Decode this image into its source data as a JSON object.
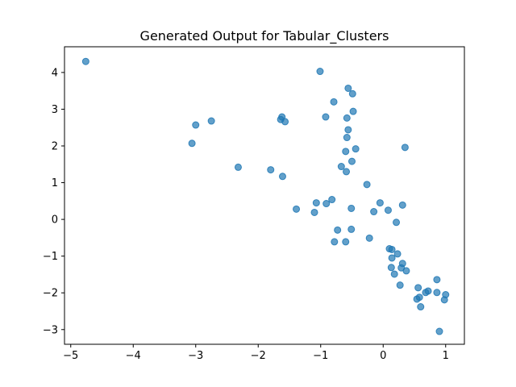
{
  "chart_data": {
    "type": "scatter",
    "title": "Generated Output for Tabular_Clusters",
    "xlabel": "",
    "ylabel": "",
    "xlim": [
      -5.1,
      1.3
    ],
    "ylim": [
      -3.4,
      4.7
    ],
    "xticks": [
      -5,
      -4,
      -3,
      -2,
      -1,
      0,
      1
    ],
    "yticks": [
      -3,
      -2,
      -1,
      0,
      1,
      2,
      3,
      4
    ],
    "xtick_labels": [
      "−5",
      "−4",
      "−3",
      "−2",
      "−1",
      "0",
      "1"
    ],
    "ytick_labels": [
      "−3",
      "−2",
      "−1",
      "0",
      "1",
      "2",
      "3",
      "4"
    ],
    "grid": false,
    "color": "#1f77b4",
    "points": [
      [
        -4.76,
        4.3
      ],
      [
        -1.01,
        4.03
      ],
      [
        -0.56,
        3.57
      ],
      [
        -0.49,
        3.42
      ],
      [
        -0.79,
        3.2
      ],
      [
        -0.48,
        2.94
      ],
      [
        -0.92,
        2.79
      ],
      [
        -0.58,
        2.76
      ],
      [
        -1.62,
        2.79
      ],
      [
        -1.64,
        2.72
      ],
      [
        -1.57,
        2.66
      ],
      [
        -2.75,
        2.68
      ],
      [
        -3.0,
        2.57
      ],
      [
        -0.56,
        2.44
      ],
      [
        -0.58,
        2.23
      ],
      [
        -3.06,
        2.07
      ],
      [
        0.35,
        1.96
      ],
      [
        -0.44,
        1.92
      ],
      [
        -0.6,
        1.85
      ],
      [
        -0.5,
        1.58
      ],
      [
        -0.67,
        1.44
      ],
      [
        -2.32,
        1.42
      ],
      [
        -1.8,
        1.35
      ],
      [
        -0.59,
        1.3
      ],
      [
        -1.61,
        1.17
      ],
      [
        -0.26,
        0.95
      ],
      [
        -0.82,
        0.54
      ],
      [
        -1.07,
        0.45
      ],
      [
        -0.91,
        0.43
      ],
      [
        -0.05,
        0.45
      ],
      [
        0.31,
        0.39
      ],
      [
        -1.39,
        0.28
      ],
      [
        -0.51,
        0.3
      ],
      [
        0.08,
        0.25
      ],
      [
        -0.15,
        0.21
      ],
      [
        -1.1,
        0.19
      ],
      [
        0.21,
        -0.08
      ],
      [
        -0.73,
        -0.29
      ],
      [
        -0.51,
        -0.27
      ],
      [
        -0.22,
        -0.51
      ],
      [
        -0.78,
        -0.61
      ],
      [
        -0.6,
        -0.61
      ],
      [
        0.1,
        -0.8
      ],
      [
        0.14,
        -0.82
      ],
      [
        0.23,
        -0.94
      ],
      [
        0.14,
        -1.05
      ],
      [
        0.31,
        -1.2
      ],
      [
        0.29,
        -1.32
      ],
      [
        0.13,
        -1.31
      ],
      [
        0.37,
        -1.4
      ],
      [
        0.18,
        -1.49
      ],
      [
        0.86,
        -1.64
      ],
      [
        0.27,
        -1.79
      ],
      [
        0.56,
        -1.86
      ],
      [
        0.72,
        -1.95
      ],
      [
        0.68,
        -1.99
      ],
      [
        0.86,
        -1.99
      ],
      [
        1.0,
        -2.05
      ],
      [
        0.58,
        -2.12
      ],
      [
        0.54,
        -2.17
      ],
      [
        0.98,
        -2.19
      ],
      [
        0.6,
        -2.38
      ],
      [
        0.9,
        -3.05
      ]
    ]
  }
}
